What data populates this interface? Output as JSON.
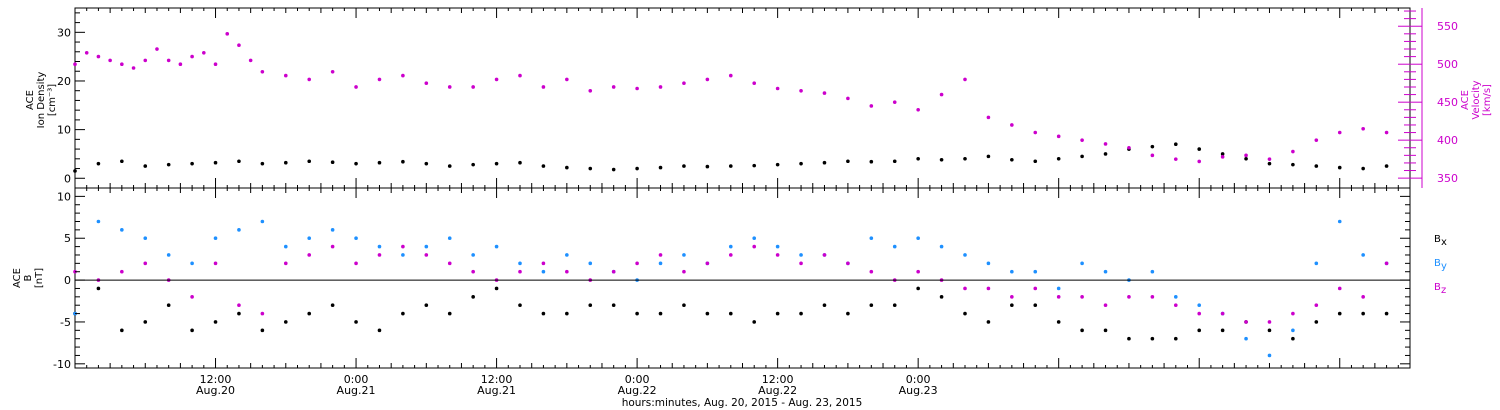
{
  "chart_data": [
    {
      "type": "scatter",
      "panel": "plasma",
      "left_axis_label": [
        "ACE",
        "Ion Density",
        "[cm⁻³]"
      ],
      "right_axis_label": [
        "ACE",
        "Velocity",
        "[km/s]"
      ],
      "left_ylim": [
        -2,
        35
      ],
      "left_yticks": [
        0,
        10,
        20,
        30
      ],
      "right_ylim": [
        337,
        574
      ],
      "right_yticks": [
        350,
        400,
        450,
        500,
        550
      ],
      "right_axis_color": "#cc00cc",
      "series": [
        {
          "color": "#000000",
          "axis": "left",
          "x": [
            0,
            2,
            4,
            6,
            8,
            10,
            12,
            14,
            16,
            18,
            20,
            22,
            24,
            26,
            28,
            30,
            32,
            34,
            36,
            38,
            40,
            42,
            44,
            46,
            48,
            50,
            52,
            54,
            56,
            58,
            60,
            62,
            64,
            66,
            68,
            70,
            72,
            74,
            76,
            78,
            80,
            82,
            84,
            86,
            88,
            90,
            92,
            94,
            96,
            98,
            100,
            102,
            104,
            106,
            108,
            110,
            112
          ],
          "y": [
            1.5,
            3.0,
            3.5,
            2.5,
            2.8,
            3.0,
            3.2,
            3.5,
            3.0,
            3.2,
            3.5,
            3.3,
            3.0,
            3.2,
            3.4,
            3.0,
            2.5,
            2.8,
            3.0,
            3.2,
            2.5,
            2.2,
            2.0,
            1.8,
            2.0,
            2.2,
            2.5,
            2.4,
            2.5,
            2.6,
            2.8,
            3.0,
            3.2,
            3.5,
            3.4,
            3.5,
            4.0,
            3.8,
            4.0,
            4.5,
            3.8,
            3.5,
            4.0,
            4.5,
            5.0,
            6.0,
            6.5,
            7.0,
            6.0,
            5.0,
            4.0,
            3.0,
            2.8,
            2.5,
            2.2,
            2.0,
            2.5
          ]
        },
        {
          "color": "#cc00cc",
          "axis": "right",
          "x": [
            0,
            1,
            2,
            3,
            4,
            5,
            6,
            7,
            8,
            9,
            10,
            11,
            12,
            13,
            14,
            15,
            16,
            18,
            20,
            22,
            24,
            26,
            28,
            30,
            32,
            34,
            36,
            38,
            40,
            42,
            44,
            46,
            48,
            50,
            52,
            54,
            56,
            58,
            60,
            62,
            64,
            66,
            68,
            70,
            72,
            74,
            76,
            78,
            80,
            82,
            84,
            86,
            88,
            90,
            92,
            94,
            96,
            98,
            100,
            102,
            104,
            106,
            108,
            110,
            112
          ],
          "y": [
            500,
            515,
            510,
            505,
            500,
            495,
            505,
            520,
            505,
            500,
            510,
            515,
            500,
            540,
            525,
            505,
            490,
            485,
            480,
            490,
            470,
            480,
            485,
            475,
            470,
            470,
            480,
            485,
            470,
            480,
            465,
            470,
            468,
            470,
            475,
            480,
            485,
            475,
            468,
            465,
            462,
            455,
            445,
            450,
            440,
            460,
            480,
            430,
            420,
            410,
            405,
            400,
            395,
            390,
            380,
            375,
            372,
            378,
            380,
            375,
            385,
            400,
            410,
            415,
            410
          ]
        }
      ]
    },
    {
      "type": "scatter",
      "panel": "magnetic field",
      "left_axis_label": [
        "ACE",
        "B",
        "[nT]"
      ],
      "ylim": [
        -10.5,
        11
      ],
      "yticks": [
        -10,
        -5,
        0,
        5,
        10
      ],
      "zero_line": true,
      "legend": [
        {
          "text": "B",
          "sub": "x",
          "color": "#000000"
        },
        {
          "text": "B",
          "sub": "y",
          "color": "#1e90ff"
        },
        {
          "text": "B",
          "sub": "z",
          "color": "#cc00cc"
        }
      ],
      "series": [
        {
          "color": "#000000",
          "x": [
            0,
            2,
            4,
            6,
            8,
            10,
            12,
            14,
            16,
            18,
            20,
            22,
            24,
            26,
            28,
            30,
            32,
            34,
            36,
            38,
            40,
            42,
            44,
            46,
            48,
            50,
            52,
            54,
            56,
            58,
            60,
            62,
            64,
            66,
            68,
            70,
            72,
            74,
            76,
            78,
            80,
            82,
            84,
            86,
            88,
            90,
            92,
            94,
            96,
            98,
            100,
            102,
            104,
            106,
            108,
            110,
            112
          ],
          "y": [
            -4,
            -1,
            -6,
            -5,
            -3,
            -6,
            -5,
            -4,
            -6,
            -5,
            -4,
            -3,
            -5,
            -6,
            -4,
            -3,
            -4,
            -2,
            -1,
            -3,
            -4,
            -4,
            -3,
            -3,
            -4,
            -4,
            -3,
            -4,
            -4,
            -5,
            -4,
            -4,
            -3,
            -4,
            -3,
            -3,
            -1,
            -2,
            -4,
            -5,
            -3,
            -3,
            -5,
            -6,
            -6,
            -7,
            -7,
            -7,
            -6,
            -6,
            -5,
            -6,
            -7,
            -5,
            -4,
            -4,
            -4
          ]
        },
        {
          "color": "#1e90ff",
          "x": [
            0,
            2,
            4,
            6,
            8,
            10,
            12,
            14,
            16,
            18,
            20,
            22,
            24,
            26,
            28,
            30,
            32,
            34,
            36,
            38,
            40,
            42,
            44,
            46,
            48,
            50,
            52,
            54,
            56,
            58,
            60,
            62,
            64,
            66,
            68,
            70,
            72,
            74,
            76,
            78,
            80,
            82,
            84,
            86,
            88,
            90,
            92,
            94,
            96,
            98,
            100,
            102,
            104,
            106,
            108,
            110,
            112
          ],
          "y": [
            -4,
            7,
            6,
            5,
            3,
            2,
            5,
            6,
            7,
            4,
            5,
            6,
            5,
            4,
            3,
            4,
            5,
            3,
            4,
            2,
            1,
            3,
            2,
            1,
            0,
            2,
            3,
            2,
            4,
            5,
            4,
            3,
            3,
            2,
            5,
            4,
            5,
            4,
            3,
            2,
            1,
            1,
            -1,
            2,
            1,
            0,
            1,
            -2,
            -3,
            -4,
            -7,
            -9,
            -6,
            2,
            7,
            3,
            2
          ]
        },
        {
          "color": "#cc00cc",
          "x": [
            0,
            2,
            4,
            6,
            8,
            10,
            12,
            14,
            16,
            18,
            20,
            22,
            24,
            26,
            28,
            30,
            32,
            34,
            36,
            38,
            40,
            42,
            44,
            46,
            48,
            50,
            52,
            54,
            56,
            58,
            60,
            62,
            64,
            66,
            68,
            70,
            72,
            74,
            76,
            78,
            80,
            82,
            84,
            86,
            88,
            90,
            92,
            94,
            96,
            98,
            100,
            102,
            104,
            106,
            108,
            110,
            112
          ],
          "y": [
            1,
            0,
            1,
            2,
            0,
            -2,
            2,
            -3,
            -4,
            2,
            3,
            4,
            2,
            3,
            4,
            3,
            2,
            1,
            0,
            1,
            2,
            1,
            0,
            1,
            2,
            3,
            1,
            2,
            3,
            4,
            3,
            2,
            3,
            2,
            1,
            0,
            1,
            0,
            -1,
            -1,
            -2,
            -1,
            -2,
            -2,
            -3,
            -2,
            -2,
            -3,
            -4,
            -4,
            -5,
            -5,
            -4,
            -3,
            -1,
            -2,
            2
          ]
        }
      ]
    }
  ],
  "x_axis": {
    "xlim": [
      0,
      114
    ],
    "ticks": [
      {
        "hour": 12,
        "time": "12:00",
        "date": "Aug.20"
      },
      {
        "hour": 24,
        "time": "0:00",
        "date": "Aug.21"
      },
      {
        "hour": 36,
        "time": "12:00",
        "date": "Aug.21"
      },
      {
        "hour": 48,
        "time": "0:00",
        "date": "Aug.22"
      },
      {
        "hour": 60,
        "time": "12:00",
        "date": "Aug.22"
      },
      {
        "hour": 72,
        "time": "0:00",
        "date": "Aug.23"
      }
    ],
    "label": "hours:minutes, Aug. 20, 2015 - Aug. 23, 2015"
  }
}
